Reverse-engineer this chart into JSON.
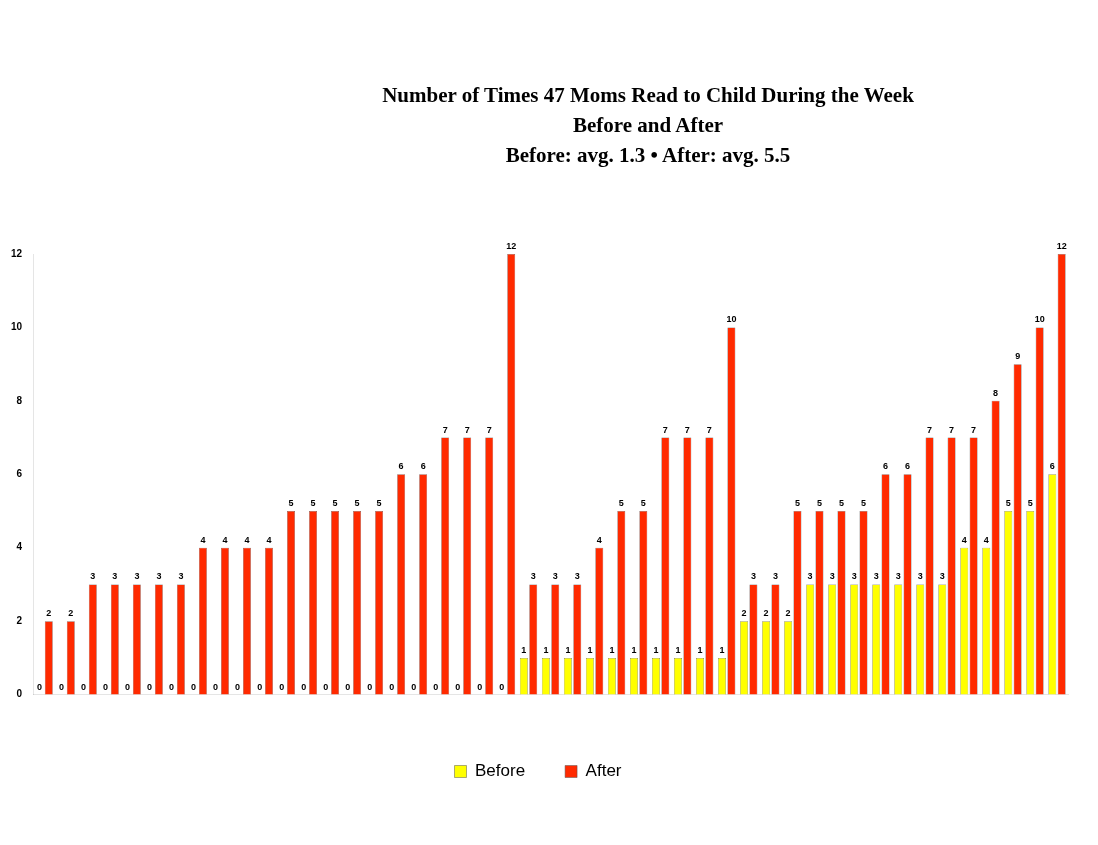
{
  "chart_data": {
    "type": "bar",
    "title": "Number of Times 47 Moms Read to Child During the Week",
    "subtitle": "Before and After",
    "annotations": [
      "Before: avg. 1.3 • After: avg. 5.5"
    ],
    "categories": [
      null,
      null,
      null,
      null,
      null,
      null,
      null,
      null,
      null,
      null,
      null,
      null,
      null,
      null,
      null,
      null,
      null,
      null,
      null,
      null,
      null,
      null,
      null,
      null,
      null,
      null,
      null,
      null,
      null,
      null,
      null,
      null,
      null,
      null,
      null,
      null,
      null,
      null,
      null,
      null,
      null,
      null,
      null,
      null,
      null,
      null,
      null
    ],
    "series": [
      {
        "name": "Before",
        "color": "#ffff00",
        "values": [
          0,
          0,
          0,
          0,
          0,
          0,
          0,
          0,
          0,
          0,
          0,
          0,
          0,
          0,
          0,
          0,
          0,
          0,
          0,
          0,
          0,
          0,
          1,
          1,
          1,
          1,
          1,
          1,
          1,
          1,
          1,
          1,
          2,
          2,
          2,
          3,
          3,
          3,
          3,
          3,
          3,
          3,
          4,
          4,
          5,
          5,
          6
        ]
      },
      {
        "name": "After",
        "color": "#ff2a00",
        "values": [
          2,
          2,
          3,
          3,
          3,
          3,
          3,
          4,
          4,
          4,
          4,
          5,
          5,
          5,
          5,
          5,
          6,
          6,
          7,
          7,
          7,
          12,
          3,
          3,
          3,
          4,
          5,
          5,
          7,
          7,
          7,
          10,
          3,
          3,
          5,
          5,
          5,
          5,
          6,
          6,
          7,
          7,
          7,
          8,
          9,
          10,
          12
        ]
      }
    ],
    "ylim": [
      0,
      12
    ],
    "yticks": [
      0,
      2,
      4,
      6,
      8,
      10,
      12
    ],
    "grid": false,
    "legend": "bottom",
    "data_labels": true
  }
}
